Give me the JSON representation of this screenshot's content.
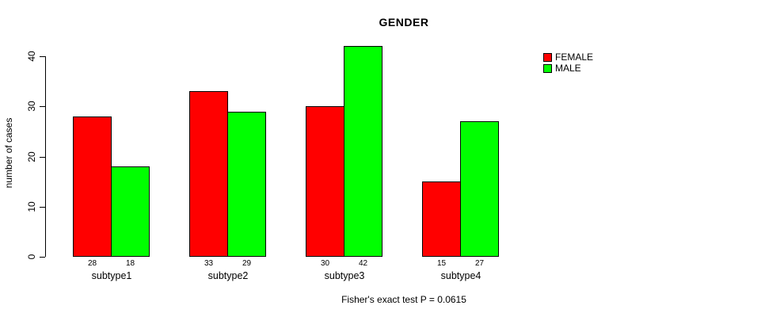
{
  "chart_data": {
    "type": "bar",
    "title": "GENDER",
    "xlabel": "",
    "ylabel": "number of cases",
    "categories": [
      "subtype1",
      "subtype2",
      "subtype3",
      "subtype4"
    ],
    "series": [
      {
        "name": "FEMALE",
        "color": "#FF0000",
        "values": [
          28,
          33,
          30,
          15
        ]
      },
      {
        "name": "MALE",
        "color": "#00FF00",
        "values": [
          18,
          29,
          42,
          27
        ]
      }
    ],
    "yticks": [
      0,
      10,
      20,
      30,
      40
    ],
    "ylim": [
      0,
      42
    ],
    "grid": false,
    "legend_position": "top-right",
    "bar_value_labels_shown": true,
    "annotation": "Fisher's exact test P = 0.0615"
  },
  "colors": {
    "female": "#FF0000",
    "male": "#00FF00",
    "axis": "#000000",
    "background": "#FFFFFF"
  }
}
